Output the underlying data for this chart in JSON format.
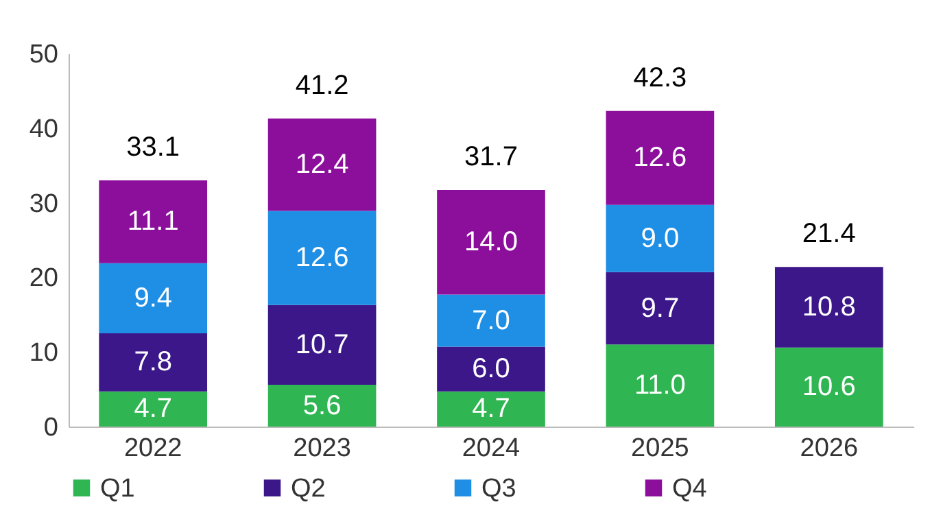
{
  "chart_data": {
    "type": "bar",
    "stacked": true,
    "categories": [
      "2022",
      "2023",
      "2024",
      "2025",
      "2026"
    ],
    "series": [
      {
        "name": "Q1",
        "color": "#2fb552",
        "values": [
          4.7,
          5.6,
          4.7,
          11.0,
          10.6
        ],
        "value_labels": [
          "4.7",
          "5.6",
          "4.7",
          "11.0",
          "10.6"
        ]
      },
      {
        "name": "Q2",
        "color": "#3b1789",
        "values": [
          7.8,
          10.7,
          6.0,
          9.7,
          10.8
        ],
        "value_labels": [
          "7.8",
          "10.7",
          "6.0",
          "9.7",
          "10.8"
        ]
      },
      {
        "name": "Q3",
        "color": "#1f8fe5",
        "values": [
          9.4,
          12.6,
          7.0,
          9.0,
          null
        ],
        "value_labels": [
          "9.4",
          "12.6",
          "7.0",
          "9.0",
          null
        ]
      },
      {
        "name": "Q4",
        "color": "#8c0f9c",
        "values": [
          11.1,
          12.4,
          14.0,
          12.6,
          null
        ],
        "value_labels": [
          "11.1",
          "12.4",
          "14.0",
          "12.6",
          null
        ]
      }
    ],
    "totals": [
      "33.1",
      "41.2",
      "31.7",
      "42.3",
      "21.4"
    ],
    "ylim": [
      0,
      50
    ],
    "yticks": [
      0,
      10,
      20,
      30,
      40,
      50
    ],
    "grid": false,
    "legend": "bottom"
  }
}
